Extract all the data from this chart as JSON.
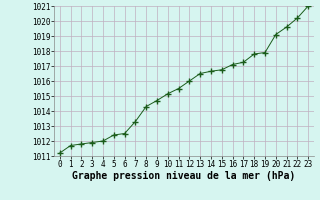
{
  "x": [
    0,
    1,
    2,
    3,
    4,
    5,
    6,
    7,
    8,
    9,
    10,
    11,
    12,
    13,
    14,
    15,
    16,
    17,
    18,
    19,
    20,
    21,
    22,
    23
  ],
  "y": [
    1011.2,
    1011.7,
    1011.8,
    1011.9,
    1012.0,
    1012.4,
    1012.5,
    1013.3,
    1014.3,
    1014.7,
    1015.15,
    1015.5,
    1016.0,
    1016.5,
    1016.65,
    1016.75,
    1017.1,
    1017.25,
    1017.8,
    1017.9,
    1019.1,
    1019.6,
    1020.2,
    1021.0
  ],
  "ylim": [
    1011,
    1021
  ],
  "yticks": [
    1011,
    1012,
    1013,
    1014,
    1015,
    1016,
    1017,
    1018,
    1019,
    1020,
    1021
  ],
  "xticks": [
    0,
    1,
    2,
    3,
    4,
    5,
    6,
    7,
    8,
    9,
    10,
    11,
    12,
    13,
    14,
    15,
    16,
    17,
    18,
    19,
    20,
    21,
    22,
    23
  ],
  "xlabel": "Graphe pression niveau de la mer (hPa)",
  "line_color": "#1a5c1a",
  "marker": "P",
  "marker_size": 2.5,
  "bg_color": "#d6f5f0",
  "grid_color": "#c0afc0",
  "tick_fontsize": 5.5,
  "xlabel_fontsize": 7
}
